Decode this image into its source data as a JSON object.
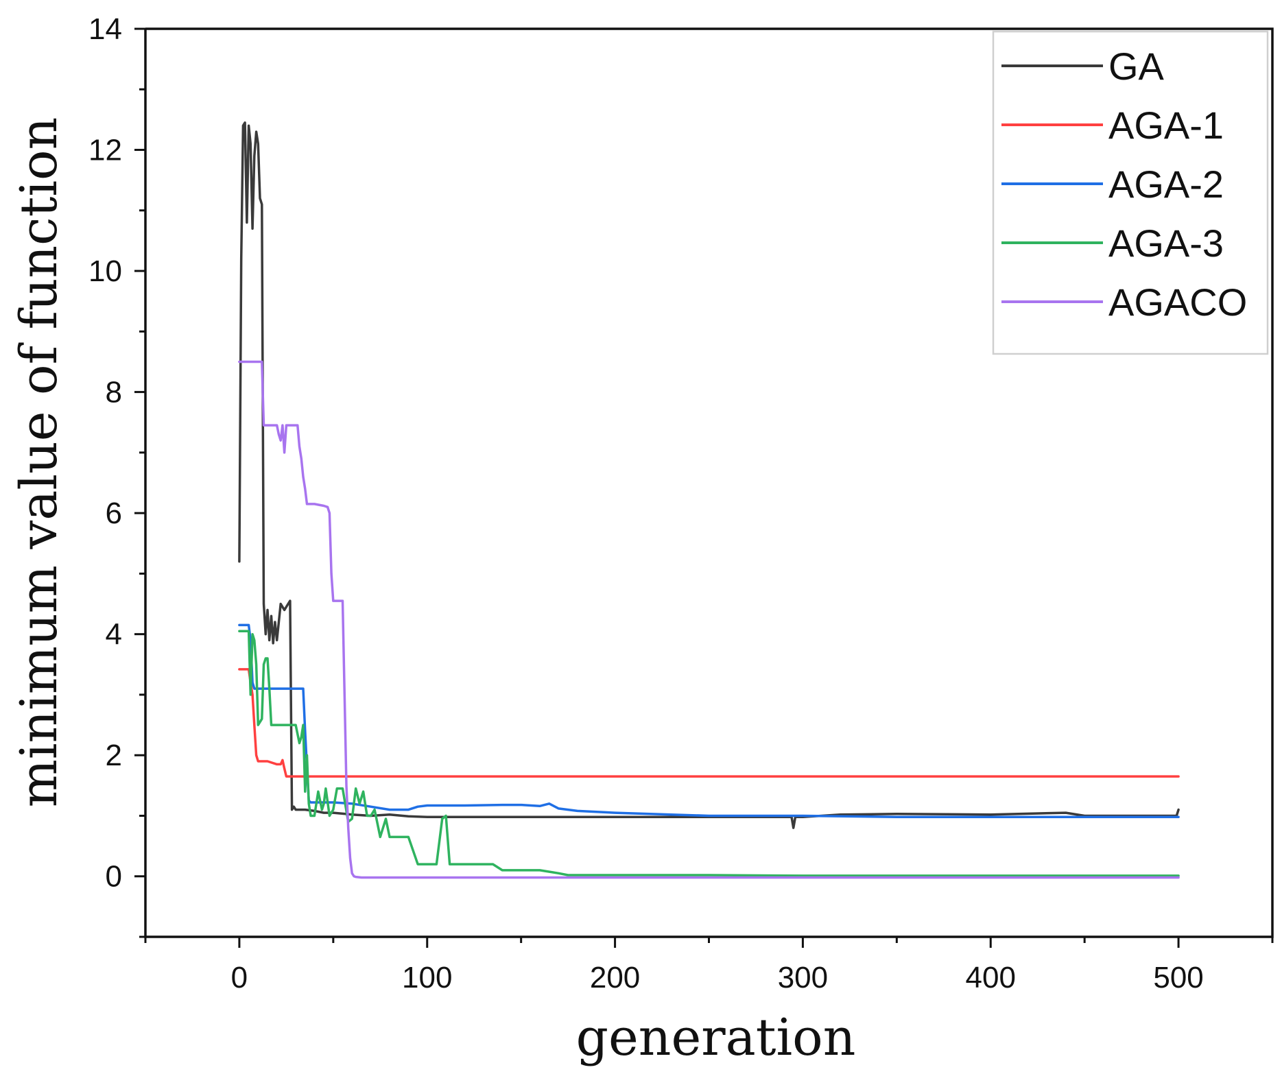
{
  "chart_data": {
    "type": "line",
    "title": "",
    "xlabel": "generation",
    "ylabel": "minimum value of function",
    "xlim": [
      -50,
      550
    ],
    "ylim": [
      -1,
      14
    ],
    "xticks": [
      0,
      100,
      200,
      300,
      400,
      500
    ],
    "yticks": [
      0,
      2,
      4,
      6,
      8,
      10,
      12,
      14
    ],
    "xticks_minor": [
      -50,
      50,
      150,
      250,
      350,
      450,
      550
    ],
    "yticks_minor": [
      -1,
      1,
      3,
      5,
      7,
      9,
      11,
      13
    ],
    "grid": false,
    "legend": "top-right",
    "series": [
      {
        "name": "GA",
        "color": "#3a3a3a",
        "x": [
          0,
          1,
          2,
          3,
          4,
          5,
          6,
          7,
          8,
          9,
          10,
          11,
          12,
          13,
          14,
          15,
          16,
          17,
          18,
          19,
          20,
          22,
          24,
          26,
          27,
          28,
          29,
          30,
          35,
          40,
          45,
          50,
          60,
          70,
          80,
          90,
          100,
          110,
          120,
          150,
          200,
          250,
          294,
          295,
          296,
          300,
          320,
          350,
          400,
          440,
          450,
          480,
          499,
          500
        ],
        "y": [
          5.2,
          10.2,
          12.4,
          12.45,
          10.8,
          12.4,
          12.1,
          10.7,
          11.9,
          12.3,
          12.1,
          11.2,
          11.1,
          4.5,
          4.0,
          4.4,
          3.9,
          4.3,
          3.85,
          4.2,
          3.9,
          4.5,
          4.4,
          4.5,
          4.55,
          1.1,
          1.15,
          1.1,
          1.1,
          1.08,
          1.05,
          1.05,
          1.02,
          1.0,
          1.02,
          0.99,
          0.98,
          0.98,
          0.98,
          0.98,
          0.98,
          0.98,
          0.98,
          0.8,
          0.98,
          0.98,
          1.02,
          1.03,
          1.02,
          1.05,
          1.0,
          1.0,
          1.0,
          1.1
        ]
      },
      {
        "name": "AGA-1",
        "color": "#ff4040",
        "x": [
          0,
          5,
          6,
          7,
          8,
          9,
          10,
          15,
          20,
          22,
          23,
          24,
          25,
          30,
          40,
          100,
          200,
          300,
          400,
          500
        ],
        "y": [
          3.42,
          3.42,
          3.2,
          3.0,
          2.5,
          2.0,
          1.9,
          1.9,
          1.85,
          1.85,
          1.92,
          1.78,
          1.65,
          1.65,
          1.65,
          1.65,
          1.65,
          1.65,
          1.65,
          1.65
        ]
      },
      {
        "name": "AGA-2",
        "color": "#1f6fe5",
        "x": [
          0,
          5,
          6,
          7,
          8,
          9,
          10,
          15,
          20,
          25,
          30,
          34,
          35,
          36,
          37,
          38,
          45,
          50,
          60,
          70,
          80,
          90,
          95,
          100,
          120,
          140,
          150,
          160,
          165,
          170,
          180,
          200,
          250,
          300,
          350,
          400,
          450,
          500
        ],
        "y": [
          4.15,
          4.15,
          3.9,
          3.2,
          3.1,
          3.1,
          3.1,
          3.1,
          3.1,
          3.1,
          3.1,
          3.1,
          2.4,
          1.8,
          1.25,
          1.22,
          1.22,
          1.22,
          1.2,
          1.15,
          1.1,
          1.1,
          1.15,
          1.17,
          1.17,
          1.18,
          1.18,
          1.16,
          1.2,
          1.12,
          1.08,
          1.05,
          1.0,
          1.0,
          0.98,
          0.98,
          0.98,
          0.98
        ]
      },
      {
        "name": "AGA-3",
        "color": "#2fb35f",
        "x": [
          0,
          5,
          6,
          7,
          8,
          9,
          10,
          12,
          13,
          14,
          15,
          16,
          17,
          18,
          19,
          20,
          25,
          30,
          32,
          33,
          34,
          35,
          36,
          37,
          38,
          40,
          42,
          44,
          45,
          46,
          48,
          50,
          52,
          55,
          58,
          60,
          62,
          64,
          66,
          68,
          70,
          72,
          75,
          78,
          80,
          90,
          95,
          100,
          105,
          108,
          110,
          112,
          115,
          120,
          135,
          140,
          150,
          160,
          170,
          175,
          180,
          200,
          250,
          300,
          350,
          400,
          450,
          500
        ],
        "y": [
          4.05,
          4.05,
          3.0,
          4.0,
          3.9,
          3.5,
          2.5,
          2.6,
          3.5,
          3.6,
          3.6,
          3.1,
          2.5,
          2.5,
          2.5,
          2.5,
          2.5,
          2.5,
          2.2,
          2.3,
          2.5,
          1.4,
          2.0,
          1.2,
          1.0,
          1.0,
          1.4,
          1.1,
          1.2,
          1.45,
          1.0,
          1.1,
          1.45,
          1.45,
          0.9,
          0.95,
          1.45,
          1.2,
          1.4,
          1.0,
          1.0,
          1.1,
          0.65,
          0.95,
          0.65,
          0.65,
          0.2,
          0.2,
          0.2,
          0.95,
          1.0,
          0.2,
          0.2,
          0.2,
          0.2,
          0.1,
          0.1,
          0.1,
          0.05,
          0.02,
          0.02,
          0.02,
          0.02,
          0.01,
          0.01,
          0.01,
          0.01,
          0.01
        ]
      },
      {
        "name": "AGACO",
        "color": "#a874ef",
        "x": [
          0,
          12,
          13,
          14,
          20,
          21,
          22,
          23,
          24,
          25,
          30,
          31,
          32,
          33,
          34,
          35,
          36,
          40,
          45,
          47,
          48,
          49,
          50,
          55,
          56,
          57,
          58,
          59,
          60,
          61,
          62,
          65,
          70,
          80,
          100,
          200,
          300,
          400,
          500
        ],
        "y": [
          8.5,
          8.5,
          7.45,
          7.45,
          7.45,
          7.3,
          7.2,
          7.45,
          7.0,
          7.45,
          7.45,
          7.45,
          7.1,
          6.9,
          6.6,
          6.4,
          6.15,
          6.15,
          6.12,
          6.1,
          6.0,
          5.0,
          4.55,
          4.55,
          3.0,
          1.5,
          0.8,
          0.3,
          0.05,
          0.0,
          -0.01,
          -0.02,
          -0.02,
          -0.02,
          -0.02,
          -0.02,
          -0.02,
          -0.02,
          -0.02
        ]
      }
    ]
  }
}
